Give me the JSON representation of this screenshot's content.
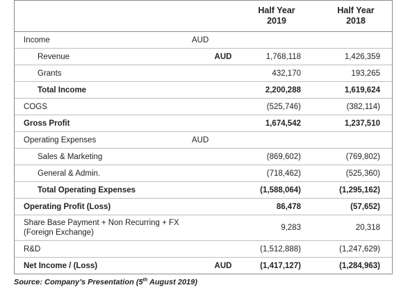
{
  "header": {
    "columns": [
      {
        "line1": "Half Year",
        "line2": "2019"
      },
      {
        "line1": "Half Year",
        "line2": "2018"
      }
    ]
  },
  "rows": [
    {
      "label": "Income",
      "unit": "AUD",
      "level": 0,
      "bold": false
    },
    {
      "label": "Revenue",
      "unit": "AUD",
      "values": [
        "1,768,118",
        "1,426,359"
      ],
      "level": 1,
      "bold": false
    },
    {
      "label": "Grants",
      "values": [
        "432,170",
        "193,265"
      ],
      "level": 1,
      "bold": false
    },
    {
      "label": "Total Income",
      "values": [
        "2,200,288",
        "1,619,624"
      ],
      "level": 1,
      "bold": true
    },
    {
      "label": "COGS",
      "values": [
        "(525,746)",
        "(382,114)"
      ],
      "level": 0,
      "bold": false
    },
    {
      "label": "Gross Profit",
      "values": [
        "1,674,542",
        "1,237,510"
      ],
      "level": 0,
      "bold": true
    },
    {
      "label": "Operating Expenses",
      "unit": "AUD",
      "level": 0,
      "bold": false
    },
    {
      "label": "Sales & Marketing",
      "values": [
        "(869,602)",
        "(769,802)"
      ],
      "level": 1,
      "bold": false
    },
    {
      "label": "General & Admin.",
      "values": [
        "(718,462)",
        "(525,360)"
      ],
      "level": 1,
      "bold": false
    },
    {
      "label": "Total Operating Expenses",
      "values": [
        "(1,588,064)",
        "(1,295,162)"
      ],
      "level": 1,
      "bold": true
    },
    {
      "label": "Operating Profit (Loss)",
      "values": [
        "86,478",
        "(57,652)"
      ],
      "level": 0,
      "bold": true
    },
    {
      "label": "Share Base Payment + Non Recurring + FX (Foreign Exchange)",
      "values": [
        "9,283",
        "20,318"
      ],
      "level": 0,
      "bold": false
    },
    {
      "label": "R&D",
      "values": [
        "(1,512,888)",
        "(1,247,629)"
      ],
      "level": 0,
      "bold": false
    },
    {
      "label": "Net Income / (Loss)",
      "unit": "AUD",
      "values": [
        "(1,417,127)",
        "(1,284,963)"
      ],
      "level": 0,
      "bold": true
    }
  ],
  "source": {
    "before": "Source: Company’s Presentation (5",
    "sup": "th",
    "after": " August 2019)"
  }
}
